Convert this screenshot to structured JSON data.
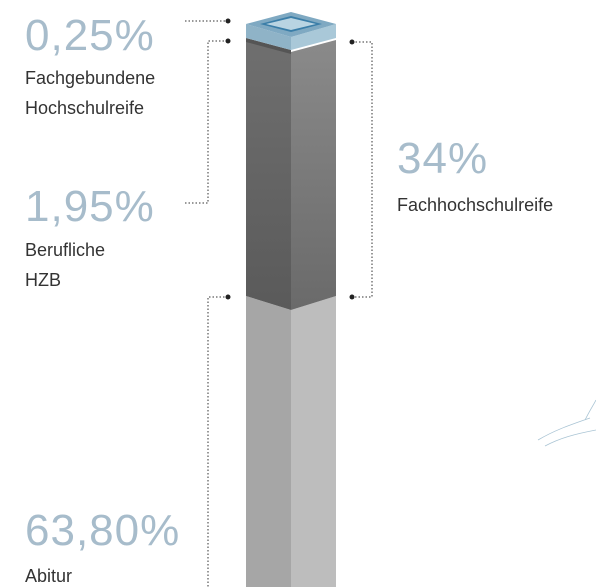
{
  "items": [
    {
      "value": "0,25%",
      "label": [
        "Fachgebundene",
        "Hochschulreife"
      ]
    },
    {
      "value": "1,95%",
      "label": [
        "Berufliche",
        "HZB"
      ]
    },
    {
      "value": "34%",
      "label": [
        "Fachhochschulreife"
      ]
    },
    {
      "value": "63,80%",
      "label": [
        "Abitur"
      ]
    }
  ]
}
